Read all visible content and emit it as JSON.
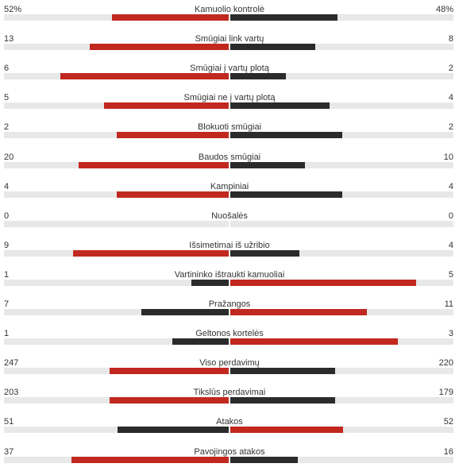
{
  "colors": {
    "leader": "#c1281f",
    "trailer": "#2b2b2b",
    "track": "#e8e8e8"
  },
  "stats": [
    {
      "label": "Kamuolio kontrolė",
      "home": "52%",
      "away": "48%",
      "home_share": 0.52,
      "away_share": 0.48
    },
    {
      "label": "Smūgiai link vartų",
      "home": "13",
      "away": "8",
      "home_share": 0.619,
      "away_share": 0.381
    },
    {
      "label": "Smūgiai į vartų plotą",
      "home": "6",
      "away": "2",
      "home_share": 0.75,
      "away_share": 0.25
    },
    {
      "label": "Smūgiai ne į vartų plotą",
      "home": "5",
      "away": "4",
      "home_share": 0.556,
      "away_share": 0.444
    },
    {
      "label": "Blokuoti smūgiai",
      "home": "2",
      "away": "2",
      "home_share": 0.5,
      "away_share": 0.5
    },
    {
      "label": "Baudos smūgiai",
      "home": "20",
      "away": "10",
      "home_share": 0.667,
      "away_share": 0.333
    },
    {
      "label": "Kampiniai",
      "home": "4",
      "away": "4",
      "home_share": 0.5,
      "away_share": 0.5
    },
    {
      "label": "Nuošalės",
      "home": "0",
      "away": "0",
      "home_share": 0,
      "away_share": 0
    },
    {
      "label": "Išsimetimai iš užribio",
      "home": "9",
      "away": "4",
      "home_share": 0.692,
      "away_share": 0.308
    },
    {
      "label": "Vartininko ištraukti kamuoliai",
      "home": "1",
      "away": "5",
      "home_share": 0.167,
      "away_share": 0.833
    },
    {
      "label": "Pražangos",
      "home": "7",
      "away": "11",
      "home_share": 0.389,
      "away_share": 0.611
    },
    {
      "label": "Geltonos kortelės",
      "home": "1",
      "away": "3",
      "home_share": 0.25,
      "away_share": 0.75
    },
    {
      "label": "Viso perdavimų",
      "home": "247",
      "away": "220",
      "home_share": 0.529,
      "away_share": 0.471
    },
    {
      "label": "Tikslūs perdavimai",
      "home": "203",
      "away": "179",
      "home_share": 0.531,
      "away_share": 0.469
    },
    {
      "label": "Atakos",
      "home": "51",
      "away": "52",
      "home_share": 0.495,
      "away_share": 0.505
    },
    {
      "label": "Pavojingos atakos",
      "home": "37",
      "away": "16",
      "home_share": 0.698,
      "away_share": 0.302
    }
  ]
}
